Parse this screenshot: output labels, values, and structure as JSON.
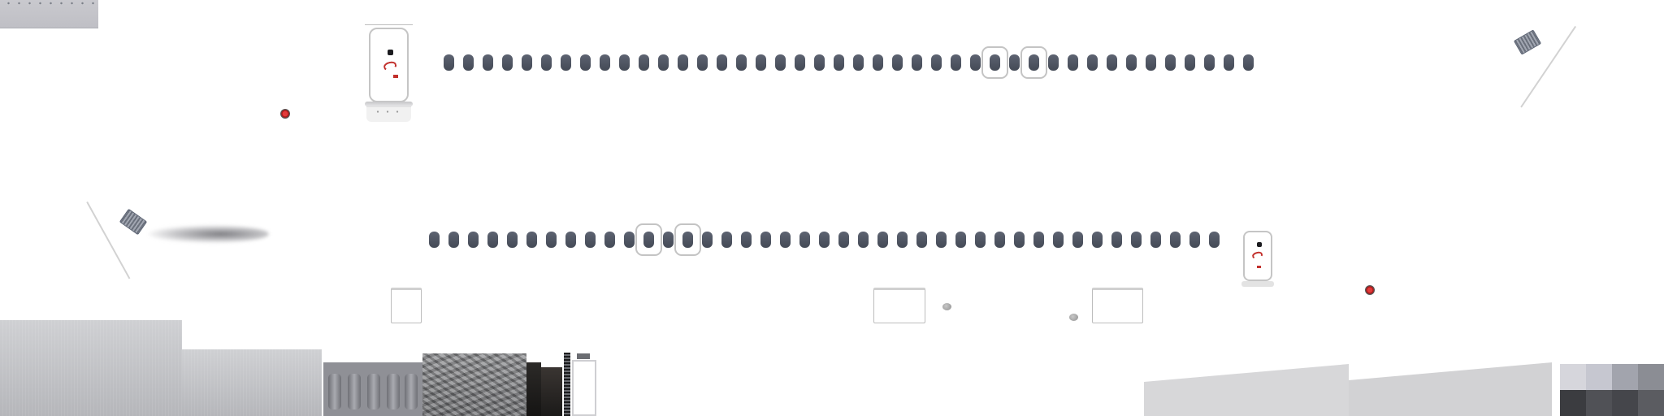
{
  "texture_atlas": {
    "colors": {
      "background": "#ffffff",
      "window": "#4b515d",
      "door_outline": "#c5c5c5",
      "door_handle": "#c2302c",
      "marker": "#d23030",
      "panel_grey": "#d7d7d9"
    },
    "window_rows": [
      {
        "count": 42,
        "exit_highlight_indexes": [
          28,
          30
        ]
      },
      {
        "count": 41,
        "exit_highlight_indexes": [
          11,
          13
        ]
      }
    ],
    "icons": [
      "rivet-strip",
      "door-panel",
      "door-handle-icon",
      "red-marker-icon",
      "antenna-grate-icon",
      "cargo-hatch",
      "pebble-icon"
    ]
  }
}
